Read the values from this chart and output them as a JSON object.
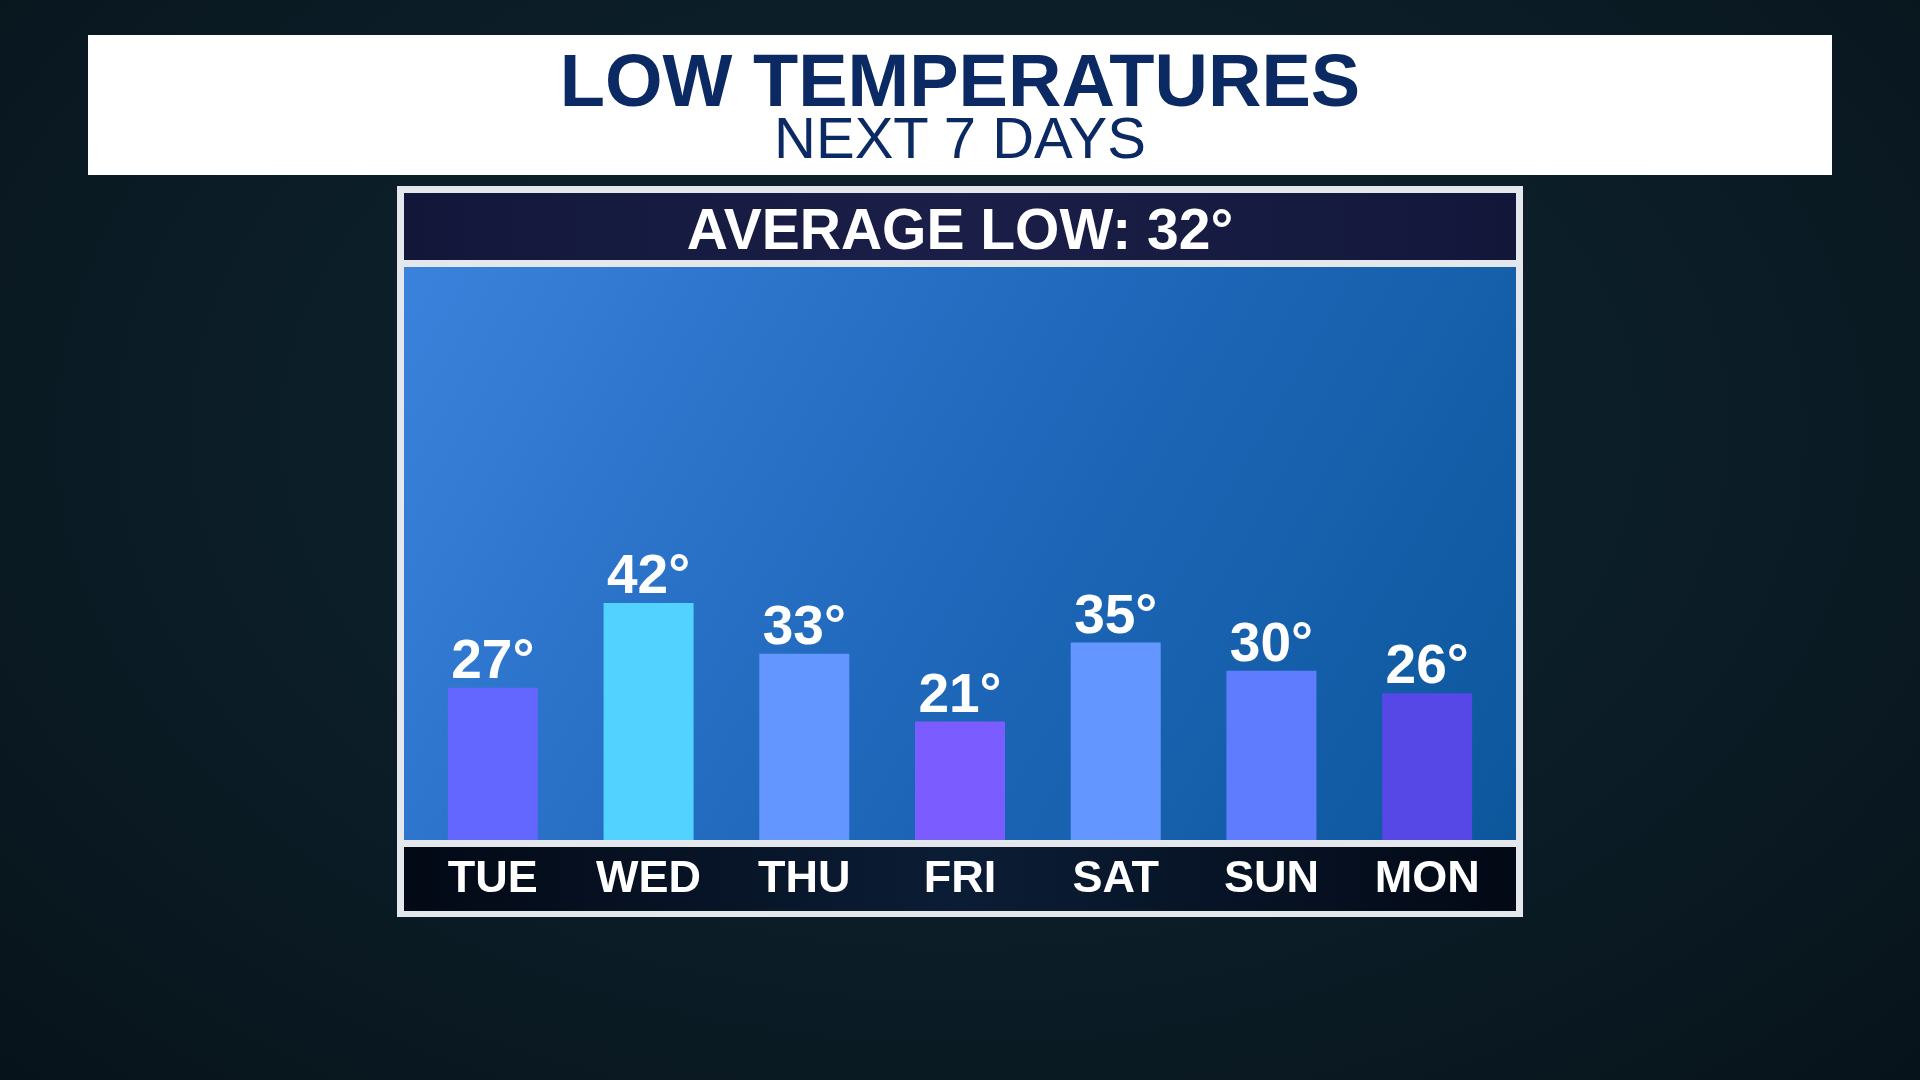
{
  "chart_data": {
    "type": "bar",
    "title": "LOW TEMPERATURES",
    "subtitle": "NEXT 7 DAYS",
    "annotations": [
      "AVERAGE LOW: 32°"
    ],
    "categories": [
      "TUE",
      "WED",
      "THU",
      "FRI",
      "SAT",
      "SUN",
      "MON"
    ],
    "values": [
      27,
      42,
      33,
      21,
      35,
      30,
      26
    ],
    "colors": [
      "#6366ff",
      "#52d3ff",
      "#6496ff",
      "#7a5cff",
      "#6496ff",
      "#5f7cff",
      "#5548e6"
    ],
    "value_labels": [
      "27°",
      "42°",
      "33°",
      "21°",
      "35°",
      "30°",
      "26°"
    ],
    "tick_labels": "x"
  }
}
